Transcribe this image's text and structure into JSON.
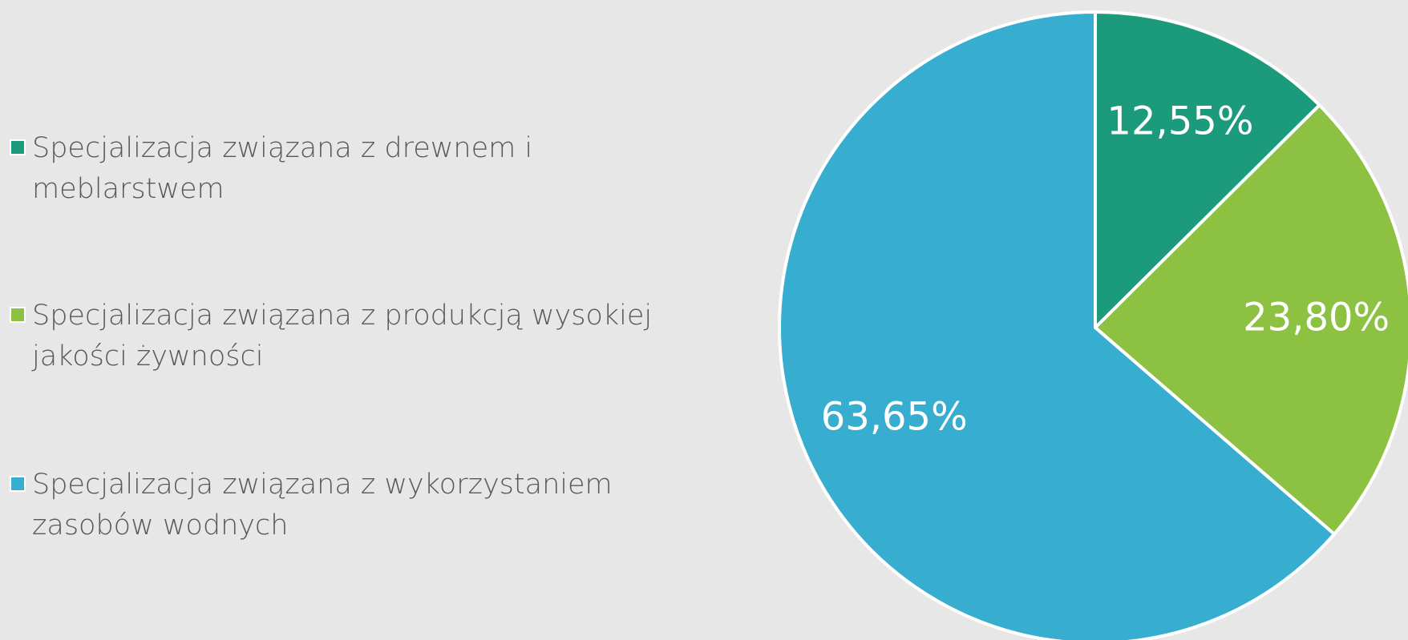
{
  "chart_data": {
    "type": "pie",
    "categories": [
      "Specjalizacja związana z drewnem i meblarstwem",
      "Specjalizacja związana z produkcją wysokiej jakości żywności",
      "Specjalizacja związana z wykorzystaniem zasobów wodnych"
    ],
    "values": [
      12.55,
      23.8,
      63.65
    ],
    "value_labels": [
      "12,55%",
      "23,80%",
      "63,65%"
    ],
    "colors": [
      "#1b9b7b",
      "#8cc142",
      "#37aed0"
    ],
    "legend": "left"
  }
}
